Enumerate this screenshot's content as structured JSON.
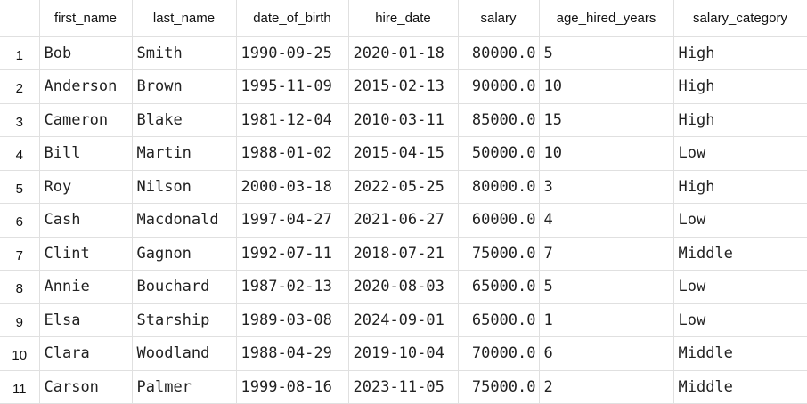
{
  "table": {
    "columns": [
      "first_name",
      "last_name",
      "date_of_birth",
      "hire_date",
      "salary",
      "age_hired_years",
      "salary_category"
    ],
    "rows": [
      {
        "num": "1",
        "cells": [
          "Bob",
          "Smith",
          "1990-09-25",
          "2020-01-18",
          "80000.0",
          "5",
          "High"
        ]
      },
      {
        "num": "2",
        "cells": [
          "Anderson",
          "Brown",
          "1995-11-09",
          "2015-02-13",
          "90000.0",
          "10",
          "High"
        ]
      },
      {
        "num": "3",
        "cells": [
          "Cameron",
          "Blake",
          "1981-12-04",
          "2010-03-11",
          "85000.0",
          "15",
          "High"
        ]
      },
      {
        "num": "4",
        "cells": [
          "Bill",
          "Martin",
          "1988-01-02",
          "2015-04-15",
          "50000.0",
          "10",
          "Low"
        ]
      },
      {
        "num": "5",
        "cells": [
          "Roy",
          "Nilson",
          "2000-03-18",
          "2022-05-25",
          "80000.0",
          "3",
          "High"
        ]
      },
      {
        "num": "6",
        "cells": [
          "Cash",
          "Macdonald",
          "1997-04-27",
          "2021-06-27",
          "60000.0",
          "4",
          "Low"
        ]
      },
      {
        "num": "7",
        "cells": [
          "Clint",
          "Gagnon",
          "1992-07-11",
          "2018-07-21",
          "75000.0",
          "7",
          "Middle"
        ]
      },
      {
        "num": "8",
        "cells": [
          "Annie",
          "Bouchard",
          "1987-02-13",
          "2020-08-03",
          "65000.0",
          "5",
          "Low"
        ]
      },
      {
        "num": "9",
        "cells": [
          "Elsa",
          "Starship",
          "1989-03-08",
          "2024-09-01",
          "65000.0",
          "1",
          "Low"
        ]
      },
      {
        "num": "10",
        "cells": [
          "Clara",
          "Woodland",
          "1988-04-29",
          "2019-10-04",
          "70000.0",
          "6",
          "Middle"
        ]
      },
      {
        "num": "11",
        "cells": [
          "Carson",
          "Palmer",
          "1999-08-16",
          "2023-11-05",
          "75000.0",
          "2",
          "Middle"
        ]
      }
    ]
  }
}
